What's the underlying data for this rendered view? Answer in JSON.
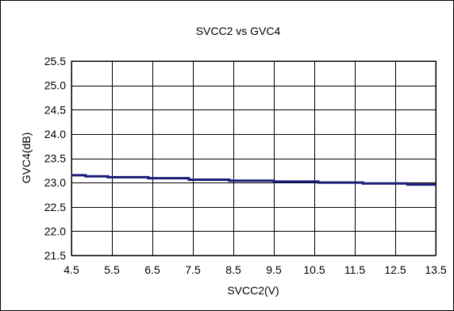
{
  "colors": {
    "background": "#ffffff",
    "frame": "#000000",
    "grid": "#000000",
    "series": "#1a1a78"
  },
  "chart_data": {
    "type": "line",
    "title": "SVCC2 vs GVC4",
    "xlabel": "SVCC2(V)",
    "ylabel": "GVC4(dB)",
    "xlim": [
      4.5,
      13.5
    ],
    "ylim": [
      21.5,
      25.5
    ],
    "xticks": [
      4.5,
      5.5,
      6.5,
      7.5,
      8.5,
      9.5,
      10.5,
      11.5,
      12.5,
      13.5
    ],
    "yticks": [
      21.5,
      22.0,
      22.5,
      23.0,
      23.5,
      24.0,
      24.5,
      25.0,
      25.5
    ],
    "xtick_labels": [
      "4.5",
      "5.5",
      "6.5",
      "7.5",
      "8.5",
      "9.5",
      "10.5",
      "11.5",
      "12.5",
      "13.5"
    ],
    "ytick_labels": [
      "21.5",
      "22.0",
      "22.5",
      "23.0",
      "23.5",
      "24.0",
      "24.5",
      "25.0",
      "25.5"
    ],
    "grid": true,
    "legend": "none",
    "series": [
      {
        "x": [
          4.5,
          4.85,
          4.85,
          5.4,
          5.4,
          6.4,
          6.4,
          7.4,
          7.4,
          8.4,
          8.4,
          9.5,
          9.5,
          10.6,
          10.6,
          11.7,
          11.7,
          12.8,
          12.8,
          13.5
        ],
        "y": [
          23.15,
          23.15,
          23.13,
          23.13,
          23.11,
          23.11,
          23.09,
          23.09,
          23.06,
          23.06,
          23.04,
          23.04,
          23.02,
          23.02,
          23.0,
          23.0,
          22.98,
          22.98,
          22.96,
          22.96
        ]
      }
    ]
  }
}
